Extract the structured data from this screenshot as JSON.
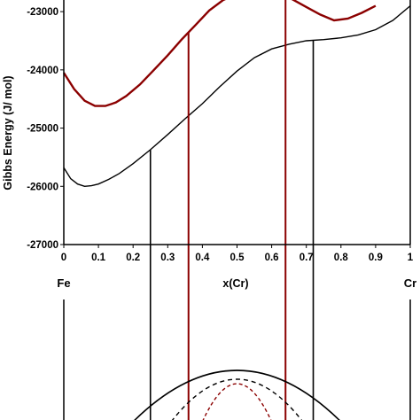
{
  "chart_data": {
    "type": "line",
    "xlabel": "x(Cr)",
    "ylabel": "Gibbs Energy (J/ mol)",
    "xlim": [
      0,
      1
    ],
    "ylim": [
      -27000,
      -22800
    ],
    "x_ticks": [
      "0",
      "0.1",
      "0.2",
      "0.3",
      "0.4",
      "0.5",
      "0.6",
      "0.7",
      "0.8",
      "0.9",
      "1"
    ],
    "y_ticks": [
      "-23000",
      "-24000",
      "-25000",
      "-26000",
      "-27000"
    ],
    "end_labels": {
      "left": "Fe",
      "right": "Cr"
    },
    "colors": {
      "upper_curve": "#8b0000",
      "lower_curve": "#000000",
      "dashed_inner": "#8b0000"
    },
    "series": [
      {
        "color": "#8b0000",
        "x": [
          0,
          0.03,
          0.06,
          0.09,
          0.12,
          0.15,
          0.18,
          0.22,
          0.26,
          0.3,
          0.34,
          0.38,
          0.42,
          0.46,
          0.5,
          0.54,
          0.58,
          0.62,
          0.66,
          0.7,
          0.74,
          0.78,
          0.82,
          0.86,
          0.9
        ],
        "values": [
          -24050,
          -24330,
          -24530,
          -24620,
          -24620,
          -24560,
          -24450,
          -24250,
          -24000,
          -23750,
          -23480,
          -23230,
          -22980,
          -22800,
          -22700,
          -22650,
          -22660,
          -22700,
          -22790,
          -22920,
          -23050,
          -23150,
          -23120,
          -23020,
          -22900
        ]
      },
      {
        "color": "#000000",
        "x": [
          0,
          0.02,
          0.04,
          0.06,
          0.08,
          0.1,
          0.13,
          0.16,
          0.2,
          0.25,
          0.3,
          0.35,
          0.4,
          0.45,
          0.5,
          0.55,
          0.6,
          0.65,
          0.7,
          0.75,
          0.8,
          0.85,
          0.9,
          0.95,
          1
        ],
        "values": [
          -25680,
          -25870,
          -25960,
          -26000,
          -25990,
          -25960,
          -25880,
          -25780,
          -25610,
          -25370,
          -25110,
          -24840,
          -24580,
          -24290,
          -24020,
          -23790,
          -23640,
          -23560,
          -23500,
          -23480,
          -23450,
          -23400,
          -23310,
          -23150,
          -22900
        ]
      }
    ],
    "tangent_lines": [
      {
        "color": "#000000",
        "x": 0.25
      },
      {
        "color": "#8b0000",
        "x": 0.36
      },
      {
        "color": "#8b0000",
        "x": 0.64
      },
      {
        "color": "#000000",
        "x": 0.72
      }
    ]
  }
}
